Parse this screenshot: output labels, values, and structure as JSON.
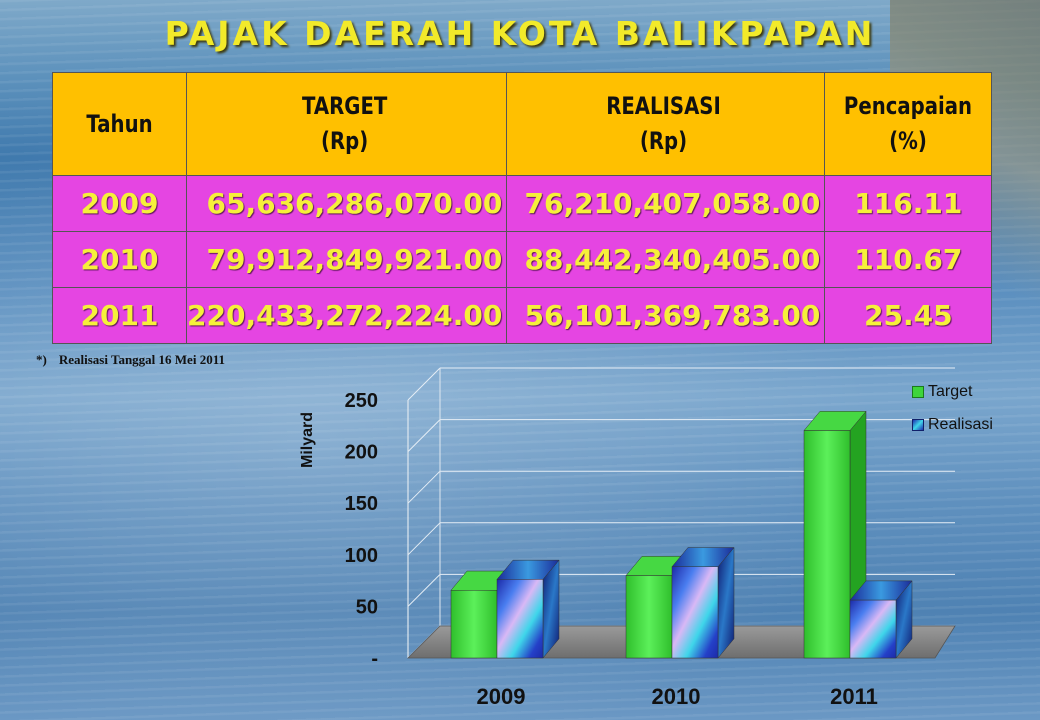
{
  "title": "PAJAK  DAERAH KOTA BALIKPAPAN",
  "table": {
    "headers": [
      {
        "line1": "Tahun",
        "line2": ""
      },
      {
        "line1": "TARGET",
        "line2": "(Rp)"
      },
      {
        "line1": "REALISASI",
        "line2": "(Rp)"
      },
      {
        "line1": "Pencapaian",
        "line2": "(%)"
      }
    ],
    "rows": [
      [
        "2009",
        "65,636,286,070.00",
        "76,210,407,058.00",
        "116.11"
      ],
      [
        "2010",
        "79,912,849,921.00",
        "88,442,340,405.00",
        "110.67"
      ],
      [
        "2011",
        "220,433,272,224.00",
        "56,101,369,783.00",
        "25.45"
      ]
    ]
  },
  "note": {
    "marker": "*)",
    "text": "Realisasi Tanggal 16 Mei 2011"
  },
  "chart_data": {
    "type": "bar",
    "categories": [
      "2009",
      "2010",
      "2011"
    ],
    "series": [
      {
        "name": "Target",
        "values": [
          65.64,
          79.91,
          220.43
        ],
        "color": "#3ed53a"
      },
      {
        "name": "Realisasi",
        "values": [
          76.21,
          88.44,
          56.1
        ],
        "color": "#2a5ad0"
      }
    ],
    "ylabel": "Milyard",
    "yticks": [
      "-",
      "50",
      "100",
      "150",
      "200",
      "250"
    ],
    "ylim": [
      0,
      250
    ],
    "grid": true,
    "legend": "top-right",
    "style": "3d"
  }
}
